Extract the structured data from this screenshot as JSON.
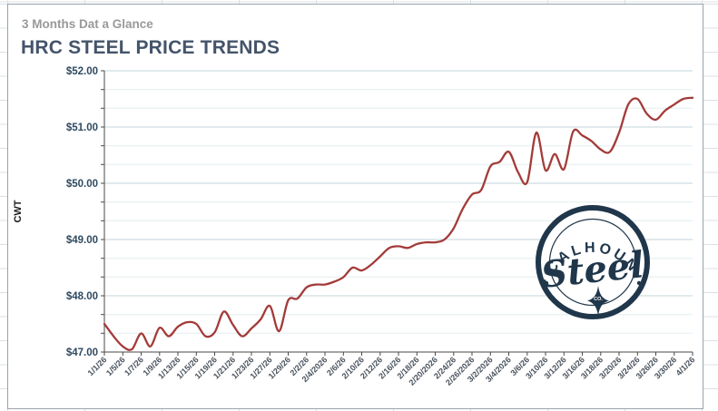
{
  "header": {
    "subtitle": "3 Months Dat a Glance",
    "title": "HRC STEEL PRICE TRENDS"
  },
  "logo": {
    "arc_text": "CALHOUN",
    "script_text": "Steel",
    "co_text": "CO."
  },
  "colors": {
    "line": "#A33B39",
    "title": "#44546A",
    "subtitle": "#999999",
    "y_tick_text": "#2E4A61",
    "x_tick_text": "#49525C",
    "axis": "#4A4A4A",
    "grid_major": "#C3D6DB",
    "grid_minor": "#E2EDEF",
    "logo_navy": "#20374B",
    "chart_border": "#97A4AB",
    "sheet_gridline": "#DBE0E4"
  },
  "chart_data": {
    "type": "line",
    "title": "HRC STEEL PRICE TRENDS",
    "ylabel": "CWT",
    "ylim": [
      47,
      52
    ],
    "y_major_unit": 1,
    "y_minor_unit": 0.3333,
    "grid": true,
    "smoothed": true,
    "legend": "none",
    "y_tick_labels": [
      "$52.00",
      "$51.00",
      "$50.00",
      "$49.00",
      "$48.00",
      "$47.00"
    ],
    "x_tick_labels": [
      "1/1/26",
      "1/5/26",
      "1/7/26",
      "1/9/26",
      "1/13/26",
      "1/15/26",
      "1/19/26",
      "1/21/26",
      "1/23/26",
      "1/27/26",
      "1/29/26",
      "2/2/26",
      "2/4/2026",
      "2/6/26",
      "2/10/26",
      "2/12/26",
      "2/16/26",
      "2/18/26",
      "2/20/2026",
      "2/24/26",
      "2/26/2026",
      "3/2/2026",
      "3/4/2026",
      "3/6/26",
      "3/10/26",
      "3/12/26",
      "3/16/26",
      "3/18/26",
      "3/20/26",
      "3/24/26",
      "3/26/26",
      "3/30/26",
      "4/1/26"
    ],
    "x_tick_every": 2,
    "x": [
      "1/1/26",
      "1/2/26",
      "1/5/26",
      "1/6/26",
      "1/7/26",
      "1/8/26",
      "1/9/26",
      "1/12/26",
      "1/13/26",
      "1/14/26",
      "1/15/26",
      "1/16/26",
      "1/19/26",
      "1/20/26",
      "1/21/26",
      "1/22/26",
      "1/23/26",
      "1/26/26",
      "1/27/26",
      "1/28/26",
      "1/29/26",
      "1/30/26",
      "2/2/26",
      "2/3/26",
      "2/4/26",
      "2/5/26",
      "2/6/26",
      "2/9/26",
      "2/10/26",
      "2/11/26",
      "2/12/26",
      "2/13/26",
      "2/16/26",
      "2/17/26",
      "2/18/26",
      "2/19/26",
      "2/20/26",
      "2/23/26",
      "2/24/26",
      "2/25/26",
      "2/26/26",
      "2/27/26",
      "3/2/26",
      "3/3/26",
      "3/4/26",
      "3/5/26",
      "3/6/26",
      "3/9/26",
      "3/10/26",
      "3/11/26",
      "3/12/26",
      "3/13/26",
      "3/16/26",
      "3/17/26",
      "3/18/26",
      "3/19/26",
      "3/20/26",
      "3/23/26",
      "3/24/26",
      "3/25/26",
      "3/26/26",
      "3/27/26",
      "3/30/26",
      "3/31/26",
      "4/1/26"
    ],
    "values": [
      47.5,
      47.28,
      47.1,
      47.05,
      47.33,
      47.1,
      47.43,
      47.28,
      47.45,
      47.53,
      47.5,
      47.28,
      47.35,
      47.72,
      47.48,
      47.28,
      47.42,
      47.58,
      47.82,
      47.37,
      47.92,
      47.95,
      48.15,
      48.2,
      48.2,
      48.25,
      48.33,
      48.5,
      48.45,
      48.55,
      48.7,
      48.85,
      48.88,
      48.85,
      48.92,
      48.95,
      48.95,
      49.0,
      49.2,
      49.55,
      49.8,
      49.88,
      50.3,
      50.38,
      50.56,
      50.2,
      50.02,
      50.9,
      50.23,
      50.52,
      50.25,
      50.92,
      50.85,
      50.75,
      50.6,
      50.56,
      50.9,
      51.4,
      51.5,
      51.24,
      51.13,
      51.29,
      51.4,
      51.5,
      51.52
    ]
  }
}
